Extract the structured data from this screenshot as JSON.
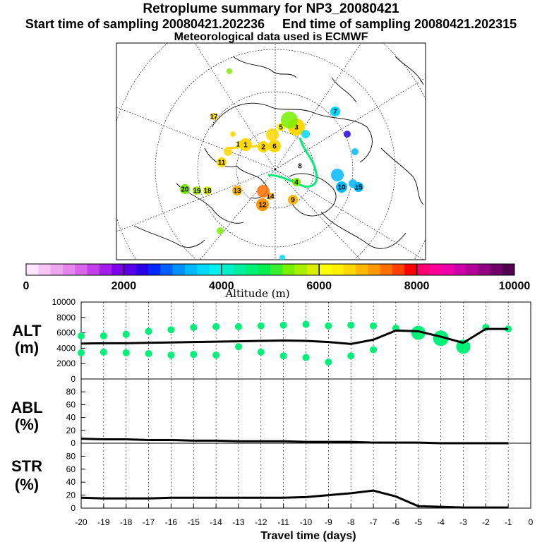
{
  "header": {
    "title": "Retroplume summary for NP3_20080421",
    "start_time": "Start time of sampling 20080421.202236",
    "end_time": "End time of sampling 20080421.202315",
    "met_data": "Meteorological data used is ECMWF"
  },
  "colorbar": {
    "label": "Altitude (m)",
    "ticks": [
      "0",
      "2000",
      "4000",
      "6000",
      "8000",
      "10000"
    ],
    "colors": [
      "#ffe6ff",
      "#f7c6f7",
      "#eea6ef",
      "#e486ec",
      "#d866e8",
      "#c23ee8",
      "#a21ee8",
      "#7f00e8",
      "#5a00e8",
      "#2a00e8",
      "#0028ff",
      "#0060ff",
      "#0090ff",
      "#00b8ff",
      "#00d8ff",
      "#00f0f0",
      "#00f0c8",
      "#00f0a0",
      "#00f078",
      "#00f050",
      "#38f030",
      "#78f000",
      "#a8f000",
      "#d8f000",
      "#ffff00",
      "#fff000",
      "#ffd800",
      "#ffb800",
      "#ff9800",
      "#ff7000",
      "#ff4000",
      "#ff0000",
      "#ff0070",
      "#ff0098",
      "#f000a8",
      "#d000a8",
      "#b00098",
      "#900080",
      "#700068",
      "#500050"
    ]
  },
  "map": {
    "labels": [
      {
        "t": "20",
        "c": "#78f000"
      },
      {
        "t": "19",
        "c": "#a8f000"
      },
      {
        "t": "18",
        "c": "#d8f000"
      },
      {
        "t": "17",
        "c": "#ffd800"
      },
      {
        "t": "16",
        "c": "#ffd800"
      },
      {
        "t": "1",
        "c": "#ffd800"
      },
      {
        "t": "2",
        "c": "#ffd800"
      },
      {
        "t": "6",
        "c": "#ffd800"
      },
      {
        "t": "4",
        "c": "#78f000"
      },
      {
        "t": "7",
        "c": "#00d8ff"
      },
      {
        "t": "8",
        "c": "#ffffff"
      },
      {
        "t": "9",
        "c": "#ffb800"
      },
      {
        "t": "10",
        "c": "#00b8ff"
      },
      {
        "t": "12",
        "c": "#ff9800"
      },
      {
        "t": "13",
        "c": "#ffb800"
      },
      {
        "t": "14",
        "c": "#ffb800"
      },
      {
        "t": "15",
        "c": "#00b8ff"
      },
      {
        "t": "11",
        "c": "#ffd800"
      },
      {
        "t": "5",
        "c": "#ffff00"
      },
      {
        "t": "3",
        "c": "#ffd800"
      }
    ]
  },
  "charts": {
    "alt_label_line1": "ALT",
    "alt_label_line2": "(m)",
    "abl_label_line1": "ABL",
    "abl_label_line2": "(%)",
    "str_label_line1": "STR",
    "str_label_line2": "(%)",
    "xlabel": "Travel time (days)"
  },
  "chart_data": [
    {
      "type": "line",
      "name": "ALT",
      "ylabel": "ALT (m)",
      "ylim": [
        0,
        10000
      ],
      "yticks": [
        0,
        2000,
        4000,
        6000,
        8000,
        10000
      ],
      "x": [
        -20,
        -19,
        -18,
        -17,
        -16,
        -15,
        -14,
        -13,
        -12,
        -11,
        -10,
        -9,
        -8,
        -7,
        -6,
        -5,
        -4,
        -3,
        -2,
        -1
      ],
      "values": [
        4600,
        4650,
        4650,
        4700,
        4750,
        4800,
        4850,
        4900,
        4950,
        5000,
        4950,
        4800,
        4550,
        5100,
        6300,
        6200,
        5500,
        4700,
        6500,
        6500
      ],
      "cluster_points": [
        {
          "x": -20,
          "y": 5600
        },
        {
          "x": -20,
          "y": 3400
        },
        {
          "x": -19,
          "y": 5600
        },
        {
          "x": -19,
          "y": 3500
        },
        {
          "x": -18,
          "y": 5800
        },
        {
          "x": -18,
          "y": 3400
        },
        {
          "x": -17,
          "y": 6200
        },
        {
          "x": -17,
          "y": 3300
        },
        {
          "x": -16,
          "y": 6400
        },
        {
          "x": -16,
          "y": 3100
        },
        {
          "x": -15,
          "y": 6700
        },
        {
          "x": -15,
          "y": 3200
        },
        {
          "x": -14,
          "y": 6800
        },
        {
          "x": -14,
          "y": 3100
        },
        {
          "x": -13,
          "y": 6800
        },
        {
          "x": -13,
          "y": 4200
        },
        {
          "x": -12,
          "y": 6900
        },
        {
          "x": -12,
          "y": 3500
        },
        {
          "x": -11,
          "y": 7000
        },
        {
          "x": -11,
          "y": 3000
        },
        {
          "x": -10,
          "y": 7100
        },
        {
          "x": -10,
          "y": 2800
        },
        {
          "x": -9,
          "y": 6900
        },
        {
          "x": -9,
          "y": 2200
        },
        {
          "x": -8,
          "y": 7000
        },
        {
          "x": -8,
          "y": 3000
        },
        {
          "x": -7,
          "y": 6900
        },
        {
          "x": -7,
          "y": 3800
        },
        {
          "x": -6,
          "y": 6600
        },
        {
          "x": -5,
          "y": 6000
        },
        {
          "x": -4,
          "y": 5300
        },
        {
          "x": -3,
          "y": 4200
        },
        {
          "x": -2,
          "y": 6700
        },
        {
          "x": -1,
          "y": 6500
        }
      ]
    },
    {
      "type": "line",
      "name": "ABL",
      "ylabel": "ABL (%)",
      "ylim": [
        0,
        100
      ],
      "yticks": [
        0,
        20,
        40,
        60,
        80
      ],
      "x": [
        -20,
        -19,
        -18,
        -17,
        -16,
        -15,
        -14,
        -13,
        -12,
        -11,
        -10,
        -9,
        -8,
        -7,
        -6,
        -5,
        -4,
        -3,
        -2,
        -1
      ],
      "values": [
        7,
        6,
        6,
        5,
        5,
        4,
        4,
        3,
        3,
        3,
        2,
        2,
        2,
        1,
        1,
        1,
        0,
        0,
        0,
        0
      ]
    },
    {
      "type": "line",
      "name": "STR",
      "ylabel": "STR (%)",
      "ylim": [
        0,
        100
      ],
      "yticks": [
        0,
        20,
        40,
        60,
        80
      ],
      "x": [
        -20,
        -19,
        -18,
        -17,
        -16,
        -15,
        -14,
        -13,
        -12,
        -11,
        -10,
        -9,
        -8,
        -7,
        -6,
        -5,
        -4,
        -3,
        -2,
        -1
      ],
      "values": [
        16,
        15,
        15,
        15,
        16,
        16,
        16,
        16,
        16,
        16,
        17,
        20,
        23,
        27,
        18,
        3,
        2,
        1,
        1,
        1
      ],
      "xticks": [
        "-20",
        "-19",
        "-18",
        "-17",
        "-16",
        "-15",
        "-14",
        "-13",
        "-12",
        "-11",
        "-10",
        "-9",
        "-8",
        "-7",
        "-6",
        "-5",
        "-4",
        "-3",
        "-2",
        "-1",
        "0"
      ]
    }
  ]
}
